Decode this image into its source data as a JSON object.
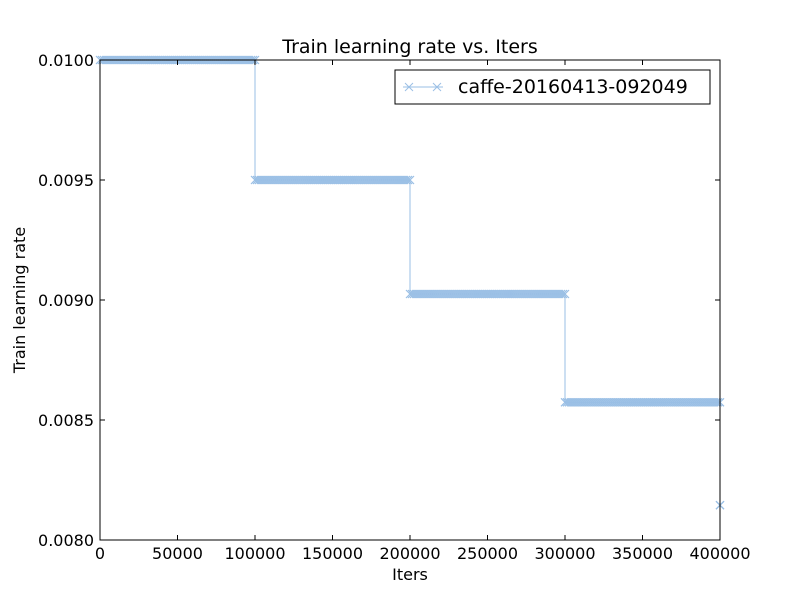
{
  "chart_data": {
    "type": "line",
    "title": "Train learning rate  vs. Iters",
    "xlabel": "Iters",
    "ylabel": "Train learning rate",
    "xlim": [
      0,
      400000
    ],
    "ylim": [
      0.008,
      0.01
    ],
    "xticks": [
      "0",
      "50000",
      "100000",
      "150000",
      "200000",
      "250000",
      "300000",
      "350000",
      "400000"
    ],
    "yticks": [
      "0.0080",
      "0.0085",
      "0.0090",
      "0.0095",
      "0.0100"
    ],
    "grid": false,
    "legend_position": "top-right",
    "series": [
      {
        "name": "caffe-20160413-092049",
        "color": "#9abfe5",
        "marker": "x",
        "steps": [
          {
            "x_start": 0,
            "x_end": 100000,
            "y": 0.01
          },
          {
            "x_start": 100000,
            "x_end": 200000,
            "y": 0.0095
          },
          {
            "x_start": 200000,
            "x_end": 300000,
            "y": 0.009025
          },
          {
            "x_start": 300000,
            "x_end": 400000,
            "y": 0.00857375
          },
          {
            "x_start": 400000,
            "x_end": 400000,
            "y": 0.0081450625
          }
        ]
      }
    ]
  }
}
